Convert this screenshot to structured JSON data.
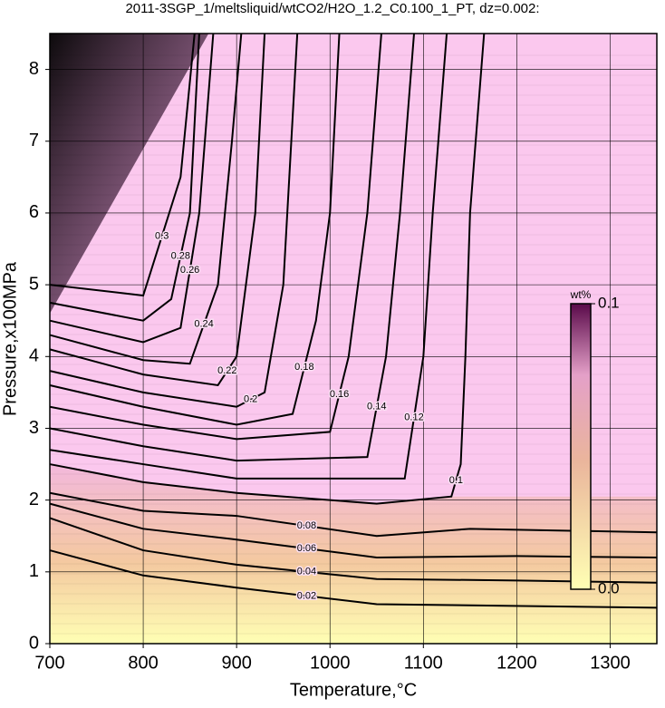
{
  "chart_data": {
    "type": "contour",
    "title": "2011-3SGP_1/meltsliquid/wtCO2/H2O_1.2_C0.100_1_PT, dz=0.002:",
    "x_label": "Temperature,°C",
    "y_label": "Pressure,x100MPa",
    "xlim": [
      700,
      1350
    ],
    "xticks": [
      700,
      800,
      900,
      1000,
      1100,
      1200,
      1300
    ],
    "ylim": [
      0,
      8.5
    ],
    "yticks": [
      0,
      1,
      2,
      3,
      4,
      5,
      6,
      7,
      8
    ],
    "grid": true,
    "colorbar": {
      "label": "wt%",
      "clim": [
        0,
        0.1
      ],
      "ticks": [
        {
          "value": 0,
          "label": "0.0"
        },
        0.1
      ]
    },
    "contours": [
      {
        "level": 0.02,
        "x": [
          700,
          800,
          900,
          1050,
          1350
        ],
        "y": [
          1.3,
          0.95,
          0.78,
          0.55,
          0.5
        ]
      },
      {
        "level": 0.04,
        "x": [
          700,
          800,
          900,
          1050,
          1200,
          1350
        ],
        "y": [
          1.75,
          1.3,
          1.1,
          0.9,
          0.88,
          0.85
        ]
      },
      {
        "level": 0.06,
        "x": [
          700,
          800,
          900,
          1050,
          1200,
          1350
        ],
        "y": [
          1.95,
          1.6,
          1.45,
          1.2,
          1.22,
          1.2
        ]
      },
      {
        "level": 0.08,
        "x": [
          700,
          800,
          900,
          1050,
          1150,
          1350
        ],
        "y": [
          2.1,
          1.85,
          1.78,
          1.5,
          1.6,
          1.55
        ]
      },
      {
        "level": 0.1,
        "x": [
          700,
          800,
          900,
          1050,
          1130,
          1140,
          1145,
          1150,
          1165
        ],
        "y": [
          2.5,
          2.25,
          2.1,
          1.95,
          2.05,
          2.5,
          4,
          6,
          8.5
        ]
      },
      {
        "level": 0.12,
        "x": [
          700,
          800,
          900,
          1080,
          1100,
          1110,
          1125
        ],
        "y": [
          2.7,
          2.5,
          2.3,
          2.3,
          4,
          6,
          8.5
        ]
      },
      {
        "level": 0.14,
        "x": [
          700,
          800,
          900,
          1040,
          1060,
          1075,
          1090
        ],
        "y": [
          3.0,
          2.75,
          2.55,
          2.6,
          4,
          6,
          8.5
        ]
      },
      {
        "level": 0.16,
        "x": [
          700,
          800,
          900,
          1000,
          1020,
          1040,
          1055
        ],
        "y": [
          3.3,
          3.05,
          2.85,
          2.95,
          4,
          6,
          8.5
        ]
      },
      {
        "level": 0.18,
        "x": [
          700,
          800,
          900,
          960,
          985,
          1000,
          1010
        ],
        "y": [
          3.6,
          3.3,
          3.05,
          3.2,
          4.5,
          6,
          8.5
        ]
      },
      {
        "level": 0.2,
        "x": [
          700,
          800,
          900,
          930,
          950,
          965
        ],
        "y": [
          3.8,
          3.5,
          3.3,
          3.5,
          5,
          8.5
        ]
      },
      {
        "level": 0.22,
        "x": [
          700,
          800,
          880,
          900,
          920,
          930
        ],
        "y": [
          4.1,
          3.75,
          3.6,
          4,
          6,
          8.5
        ]
      },
      {
        "level": 0.24,
        "x": [
          700,
          800,
          850,
          880,
          895,
          905
        ],
        "y": [
          4.3,
          3.95,
          3.9,
          5,
          7,
          8.5
        ]
      },
      {
        "level": 0.26,
        "x": [
          700,
          800,
          840,
          860,
          875
        ],
        "y": [
          4.5,
          4.2,
          4.4,
          6,
          8.5
        ]
      },
      {
        "level": 0.28,
        "x": [
          700,
          800,
          830,
          850,
          860
        ],
        "y": [
          4.75,
          4.5,
          4.8,
          6,
          8.5
        ]
      },
      {
        "level": 0.3,
        "x": [
          700,
          800,
          840,
          855
        ],
        "y": [
          5.0,
          4.85,
          6.5,
          8.5
        ]
      }
    ]
  }
}
